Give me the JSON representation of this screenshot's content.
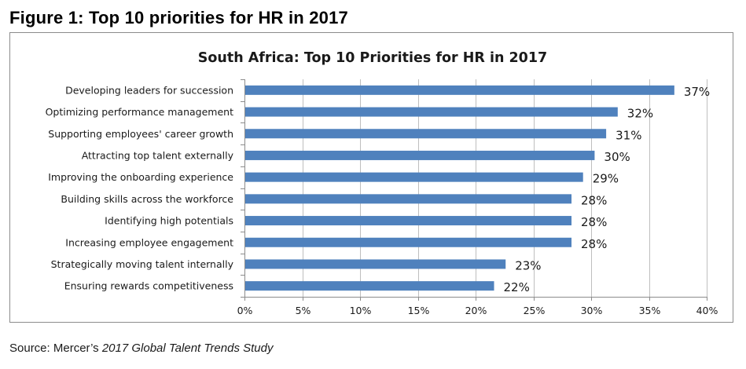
{
  "figure_title": "Figure 1: Top 10 priorities for HR in 2017",
  "source": {
    "prefix": "Source: Mercer’s ",
    "italic": "2017 Global Talent Trends Study"
  },
  "colors": {
    "bar": "#4f81bd",
    "grid": "#bfbfbf",
    "axis": "#8c8c8c"
  },
  "chart_data": {
    "type": "bar",
    "orientation": "horizontal",
    "title": "South Africa: Top 10 Priorities for HR in 2017",
    "xlabel": "",
    "ylabel": "",
    "xlim": [
      0,
      40
    ],
    "x_ticks": [
      0,
      5,
      10,
      15,
      20,
      25,
      30,
      35,
      40
    ],
    "x_tick_labels": [
      "0%",
      "5%",
      "10%",
      "15%",
      "20%",
      "25%",
      "30%",
      "35%",
      "40%"
    ],
    "grid": true,
    "legend": false,
    "categories": [
      "Developing leaders for succession",
      "Optimizing performance management",
      "Supporting employees' career growth",
      "Attracting top talent externally",
      "Improving the onboarding  experience",
      "Building skills across the workforce",
      "Identifying high potentials",
      "Increasing employee engagement",
      "Strategically moving talent internally",
      "Ensuring rewards competitiveness"
    ],
    "values": [
      37,
      32,
      31,
      30,
      29,
      28,
      28,
      28,
      23,
      22
    ],
    "value_labels": [
      "37%",
      "32%",
      "31%",
      "30%",
      "29%",
      "28%",
      "28%",
      "28%",
      "23%",
      "22%"
    ],
    "bar_lengths": [
      37.2,
      32.3,
      31.3,
      30.3,
      29.3,
      28.3,
      28.3,
      28.3,
      22.6,
      21.6
    ]
  }
}
